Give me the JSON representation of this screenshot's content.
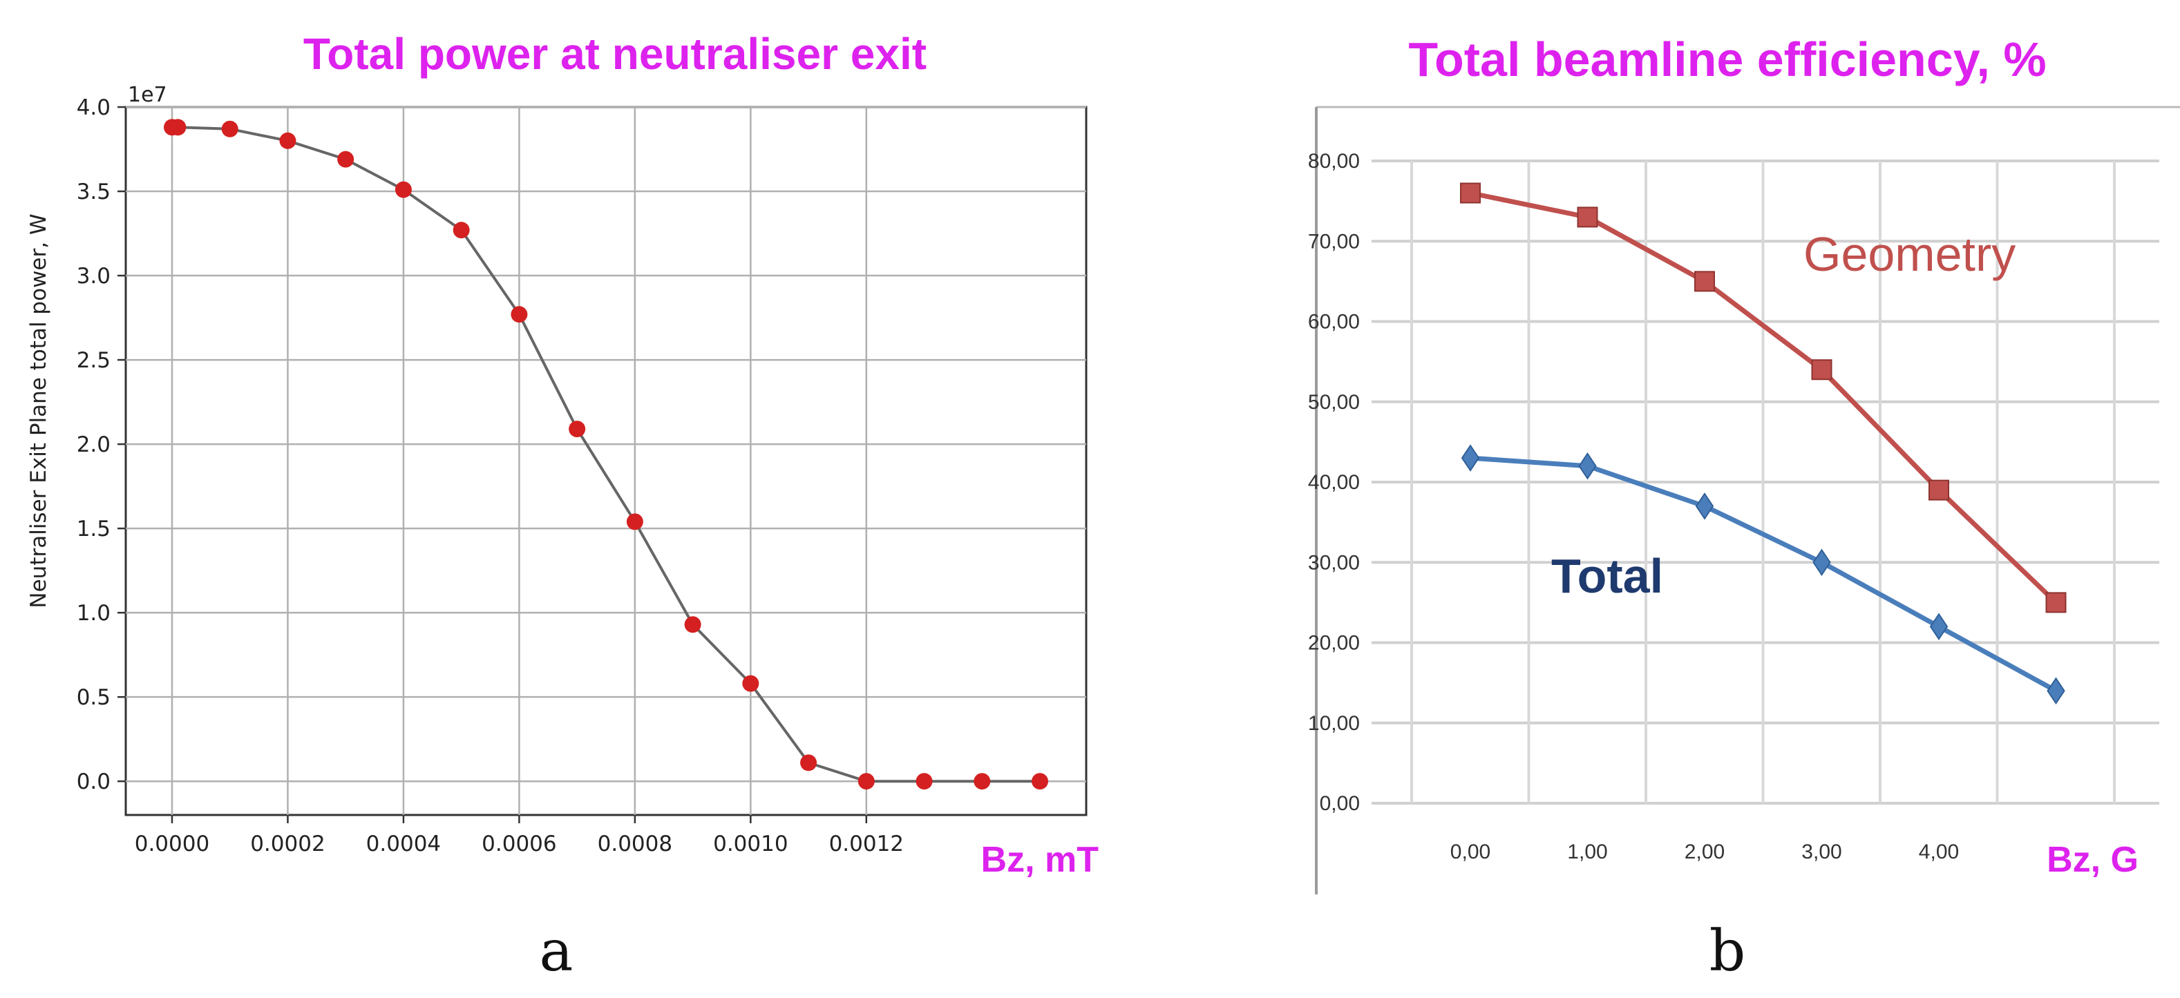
{
  "chart_data": [
    {
      "type": "line",
      "title": "Total power at neutraliser exit",
      "xlabel": "Bz, mT",
      "ylabel": "Neutraliser Exit Plane total power, W",
      "y_offset_label": "1e7",
      "panel_label": "a",
      "xlim": [
        -8e-05,
        0.00158
      ],
      "ylim": [
        -0.2,
        4.0
      ],
      "x_ticks": [
        "0.0000",
        "0.0002",
        "0.0004",
        "0.0006",
        "0.0008",
        "0.0010",
        "0.0012"
      ],
      "y_ticks": [
        "0.0",
        "0.5",
        "1.0",
        "1.5",
        "2.0",
        "2.5",
        "3.0",
        "3.5",
        "4.0"
      ],
      "grid": true,
      "series": [
        {
          "x": [
            0.0,
            1e-05,
            0.0001,
            0.0002,
            0.0003,
            0.0004,
            0.0005,
            0.0006,
            0.0007,
            0.0008,
            0.0009,
            0.001,
            0.0011,
            0.0012,
            0.0013,
            0.0014,
            0.0015
          ],
          "values": [
            3.88,
            3.88,
            3.87,
            3.8,
            3.69,
            3.51,
            3.27,
            2.77,
            2.09,
            1.54,
            0.93,
            0.58,
            0.11,
            0.0,
            0.0,
            0.0,
            0.0
          ],
          "color": "#d42020",
          "line_color": "#666666"
        }
      ]
    },
    {
      "type": "line",
      "title": "Total beamline efficiency, %",
      "xlabel": "Bz, G",
      "ylabel": "",
      "panel_label": "b",
      "categories": [
        "0,00",
        "1,00",
        "2,00",
        "3,00",
        "4,00"
      ],
      "y_ticks": [
        "0,00",
        "10,00",
        "20,00",
        "30,00",
        "40,00",
        "50,00",
        "60,00",
        "70,00",
        "80,00"
      ],
      "ylim": [
        0,
        80
      ],
      "grid": true,
      "series": [
        {
          "name": "Geometry",
          "x": [
            0,
            1,
            2,
            3,
            4,
            5
          ],
          "values": [
            76,
            73,
            65,
            54,
            39,
            25
          ],
          "color": "#c0504d"
        },
        {
          "name": "Total",
          "x": [
            0,
            1,
            2,
            3,
            4,
            5
          ],
          "values": [
            43,
            42,
            37,
            30,
            22,
            14
          ],
          "color": "#4a7ebb",
          "label_color": "#1f3a6e"
        }
      ]
    }
  ]
}
